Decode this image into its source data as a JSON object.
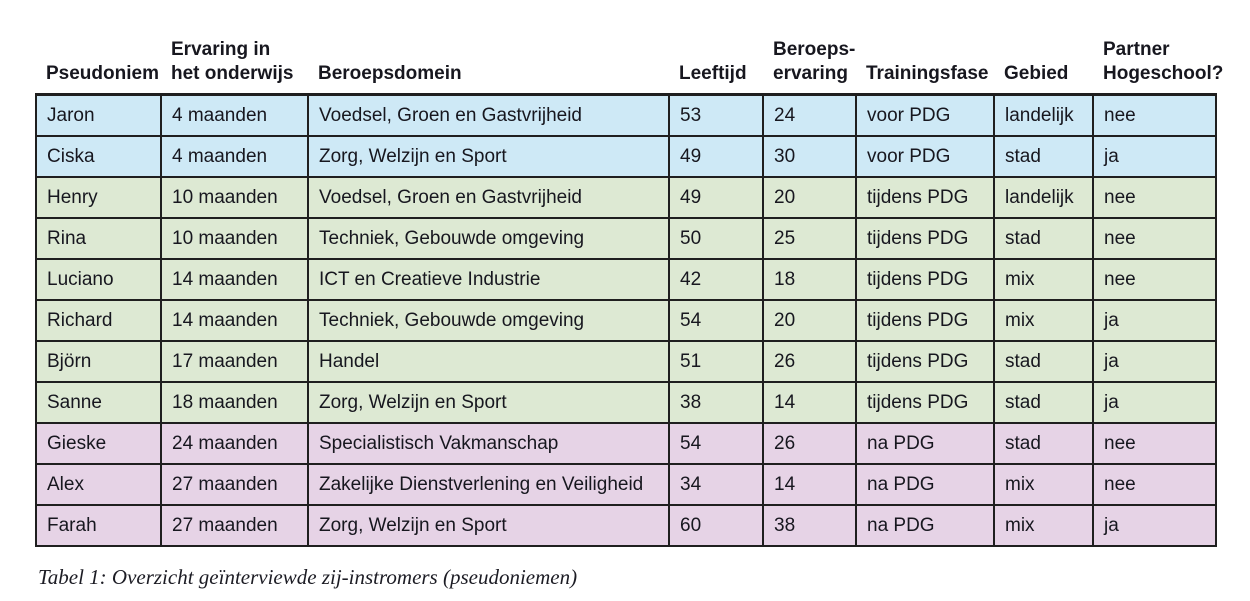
{
  "caption": "Tabel 1: Overzicht geïnterviewde zij-instromers (pseudoniemen)",
  "colors": {
    "text": "#17171f",
    "border": "#1f1f1f",
    "groups": {
      "voor": "#cee9f6",
      "tijdens": "#dde9d3",
      "na": "#e6d3e6"
    }
  },
  "table": {
    "columns": [
      {
        "key": "pseudoniem",
        "label": "Pseudoniem"
      },
      {
        "key": "ervaring",
        "label": "Ervaring in\nhet onderwijs"
      },
      {
        "key": "beroepsdomein",
        "label": "Beroepsdomein"
      },
      {
        "key": "leeftijd",
        "label": "Leeftijd"
      },
      {
        "key": "beroepservaring",
        "label": "Beroeps-\nervaring"
      },
      {
        "key": "trainingsfase",
        "label": "Trainingsfase"
      },
      {
        "key": "gebied",
        "label": "Gebied"
      },
      {
        "key": "partner",
        "label": "Partner\nHogeschool?"
      }
    ],
    "rows": [
      {
        "group": "voor",
        "pseudoniem": "Jaron",
        "ervaring": "4 maanden",
        "beroepsdomein": "Voedsel, Groen en Gastvrijheid",
        "leeftijd": "53",
        "beroepservaring": "24",
        "trainingsfase": "voor PDG",
        "gebied": "landelijk",
        "partner": "nee"
      },
      {
        "group": "voor",
        "pseudoniem": "Ciska",
        "ervaring": "4 maanden",
        "beroepsdomein": "Zorg, Welzijn en Sport",
        "leeftijd": "49",
        "beroepservaring": "30",
        "trainingsfase": "voor PDG",
        "gebied": "stad",
        "partner": "ja"
      },
      {
        "group": "tijdens",
        "pseudoniem": "Henry",
        "ervaring": "10 maanden",
        "beroepsdomein": "Voedsel, Groen en Gastvrijheid",
        "leeftijd": "49",
        "beroepservaring": "20",
        "trainingsfase": "tijdens PDG",
        "gebied": "landelijk",
        "partner": "nee"
      },
      {
        "group": "tijdens",
        "pseudoniem": "Rina",
        "ervaring": "10 maanden",
        "beroepsdomein": "Techniek, Gebouwde omgeving",
        "leeftijd": "50",
        "beroepservaring": "25",
        "trainingsfase": "tijdens PDG",
        "gebied": "stad",
        "partner": "nee"
      },
      {
        "group": "tijdens",
        "pseudoniem": "Luciano",
        "ervaring": "14 maanden",
        "beroepsdomein": "ICT en Creatieve Industrie",
        "leeftijd": "42",
        "beroepservaring": "18",
        "trainingsfase": "tijdens PDG",
        "gebied": "mix",
        "partner": "nee"
      },
      {
        "group": "tijdens",
        "pseudoniem": "Richard",
        "ervaring": "14 maanden",
        "beroepsdomein": "Techniek, Gebouwde omgeving",
        "leeftijd": "54",
        "beroepservaring": "20",
        "trainingsfase": "tijdens PDG",
        "gebied": "mix",
        "partner": "ja"
      },
      {
        "group": "tijdens",
        "pseudoniem": "Björn",
        "ervaring": "17 maanden",
        "beroepsdomein": "Handel",
        "leeftijd": "51",
        "beroepservaring": "26",
        "trainingsfase": "tijdens PDG",
        "gebied": "stad",
        "partner": "ja"
      },
      {
        "group": "tijdens",
        "pseudoniem": "Sanne",
        "ervaring": "18 maanden",
        "beroepsdomein": "Zorg, Welzijn en Sport",
        "leeftijd": "38",
        "beroepservaring": "14",
        "trainingsfase": "tijdens PDG",
        "gebied": "stad",
        "partner": "ja"
      },
      {
        "group": "na",
        "pseudoniem": "Gieske",
        "ervaring": "24 maanden",
        "beroepsdomein": "Specialistisch Vakmanschap",
        "leeftijd": "54",
        "beroepservaring": "26",
        "trainingsfase": "na PDG",
        "gebied": "stad",
        "partner": "nee"
      },
      {
        "group": "na",
        "pseudoniem": "Alex",
        "ervaring": "27 maanden",
        "beroepsdomein": "Zakelijke Dienstverlening en Veiligheid",
        "leeftijd": "34",
        "beroepservaring": "14",
        "trainingsfase": "na PDG",
        "gebied": "mix",
        "partner": "nee"
      },
      {
        "group": "na",
        "pseudoniem": "Farah",
        "ervaring": "27 maanden",
        "beroepsdomein": "Zorg, Welzijn en Sport",
        "leeftijd": "60",
        "beroepservaring": "38",
        "trainingsfase": "na PDG",
        "gebied": "mix",
        "partner": "ja"
      }
    ]
  }
}
